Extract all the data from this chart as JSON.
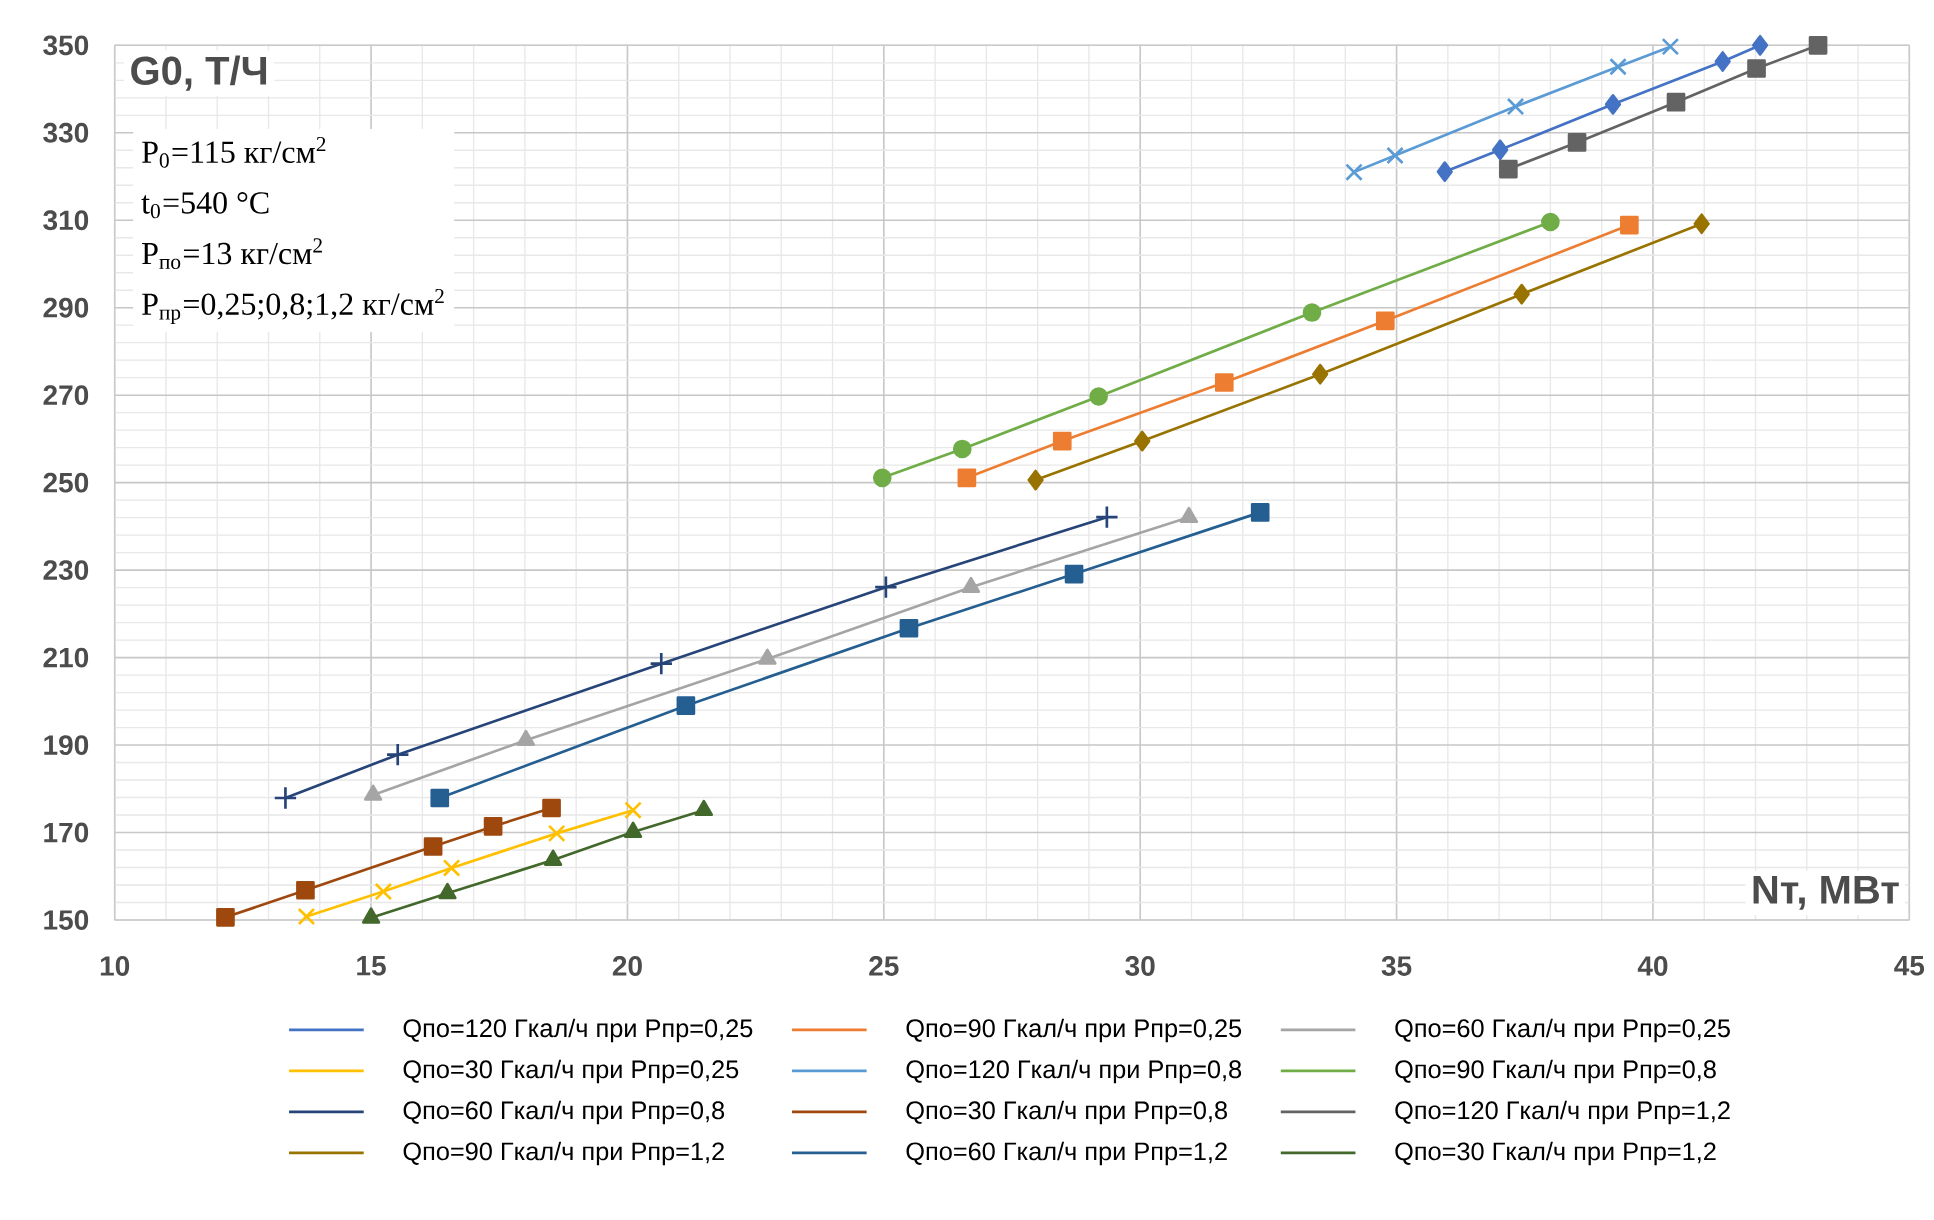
{
  "chart_data": {
    "type": "line",
    "xlabel": "Nт, МВт",
    "ylabel": "G0, Т/Ч",
    "annotations": [
      "P$_{0}$=115 кг/см$^{2}$",
      "t$_{0}$=540 °C",
      "P$_{по}$=13 кг/см$^{2}$",
      "P$_{пр}$=0,25;0,8;1,2 кг/см$^{2}$"
    ],
    "xlim": [
      10,
      45
    ],
    "xticks": [
      10,
      15,
      20,
      25,
      30,
      35,
      40,
      45
    ],
    "ylim": [
      150,
      350
    ],
    "yticks": [
      150,
      170,
      190,
      210,
      230,
      250,
      270,
      290,
      310,
      330,
      350
    ],
    "grid": true,
    "legend": "bottom",
    "series": [
      {
        "name": "Qпо=120 Гкал/ч при Pпр=0,25",
        "color": "#4472c4",
        "marker": "diamond",
        "x": [
          35.94,
          37.02,
          39.22,
          41.36,
          42.09
        ],
        "values": [
          321.1,
          326.1,
          336.5,
          346.3,
          350
        ]
      },
      {
        "name": "Qпо=90 Гкал/ч при Pпр=0,25",
        "color": "#ed7d31",
        "marker": "square",
        "x": [
          26.62,
          28.48,
          31.64,
          34.78,
          39.54
        ],
        "values": [
          251.1,
          259.5,
          272.9,
          287,
          308.9
        ]
      },
      {
        "name": "Qпо=60 Гкал/ч при Pпр=0,25",
        "color": "#a5a5a5",
        "marker": "triangle",
        "x": [
          15.04,
          18.02,
          22.73,
          26.7,
          30.95
        ],
        "values": [
          178.6,
          191.1,
          209.7,
          226.1,
          242.1
        ]
      },
      {
        "name": "Qпо=30 Гкал/ч при Pпр=0,25",
        "color": "#ffc000",
        "marker": "cross",
        "x": [
          13.74,
          15.24,
          16.57,
          18.62,
          20.11
        ],
        "values": [
          150.8,
          156.5,
          161.9,
          169.8,
          175.1
        ]
      },
      {
        "name": "Qпо=120 Гкал/ч при Pпр=0,8",
        "color": "#5b9bd5",
        "marker": "cross",
        "x": [
          34.17,
          34.97,
          37.32,
          39.32,
          40.34
        ],
        "values": [
          321.0,
          324.8,
          336.0,
          345.1,
          349.7
        ]
      },
      {
        "name": "Qпо=90 Гкал/ч при Pпр=0,8",
        "color": "#70ad47",
        "marker": "circle",
        "x": [
          24.97,
          26.53,
          29.19,
          33.35,
          38.0
        ],
        "values": [
          251.1,
          257.7,
          269.7,
          288.9,
          309.6
        ]
      },
      {
        "name": "Qпо=60 Гкал/ч при Pпр=0,8",
        "color": "#264478",
        "marker": "plus",
        "x": [
          13.33,
          15.52,
          20.66,
          25.04,
          29.35
        ],
        "values": [
          177.9,
          187.8,
          208.6,
          226.1,
          242.1
        ]
      },
      {
        "name": "Qпо=30 Гкал/ч при Pпр=0,8",
        "color": "#9e480e",
        "marker": "square",
        "x": [
          12.16,
          13.72,
          16.21,
          17.38,
          18.52
        ],
        "values": [
          150.6,
          156.8,
          166.8,
          171.4,
          175.6
        ]
      },
      {
        "name": "Qпо=120 Гкал/ч при Pпр=1,2",
        "color": "#636363",
        "marker": "square",
        "x": [
          37.18,
          38.52,
          40.45,
          42.02,
          43.22
        ],
        "values": [
          321.7,
          327.8,
          337.0,
          344.7,
          350
        ]
      },
      {
        "name": "Qпо=90 Гкал/ч при Pпр=1,2",
        "color": "#997300",
        "marker": "diamond",
        "x": [
          27.96,
          30.04,
          33.51,
          37.44,
          40.95
        ],
        "values": [
          250.6,
          259.5,
          274.8,
          293.1,
          309.2
        ]
      },
      {
        "name": "Qпо=60 Гкал/ч при Pпр=1,2",
        "color": "#255e91",
        "marker": "square",
        "x": [
          16.34,
          21.14,
          25.49,
          28.71,
          32.34
        ],
        "values": [
          177.9,
          199.0,
          216.7,
          229.1,
          243.2
        ]
      },
      {
        "name": "Qпо=30 Гкал/ч при Pпр=1,2",
        "color": "#43682b",
        "marker": "triangle",
        "x": [
          15.0,
          16.49,
          18.55,
          20.11,
          21.49
        ],
        "values": [
          150.5,
          156.1,
          163.7,
          170.1,
          175.1
        ]
      }
    ]
  }
}
